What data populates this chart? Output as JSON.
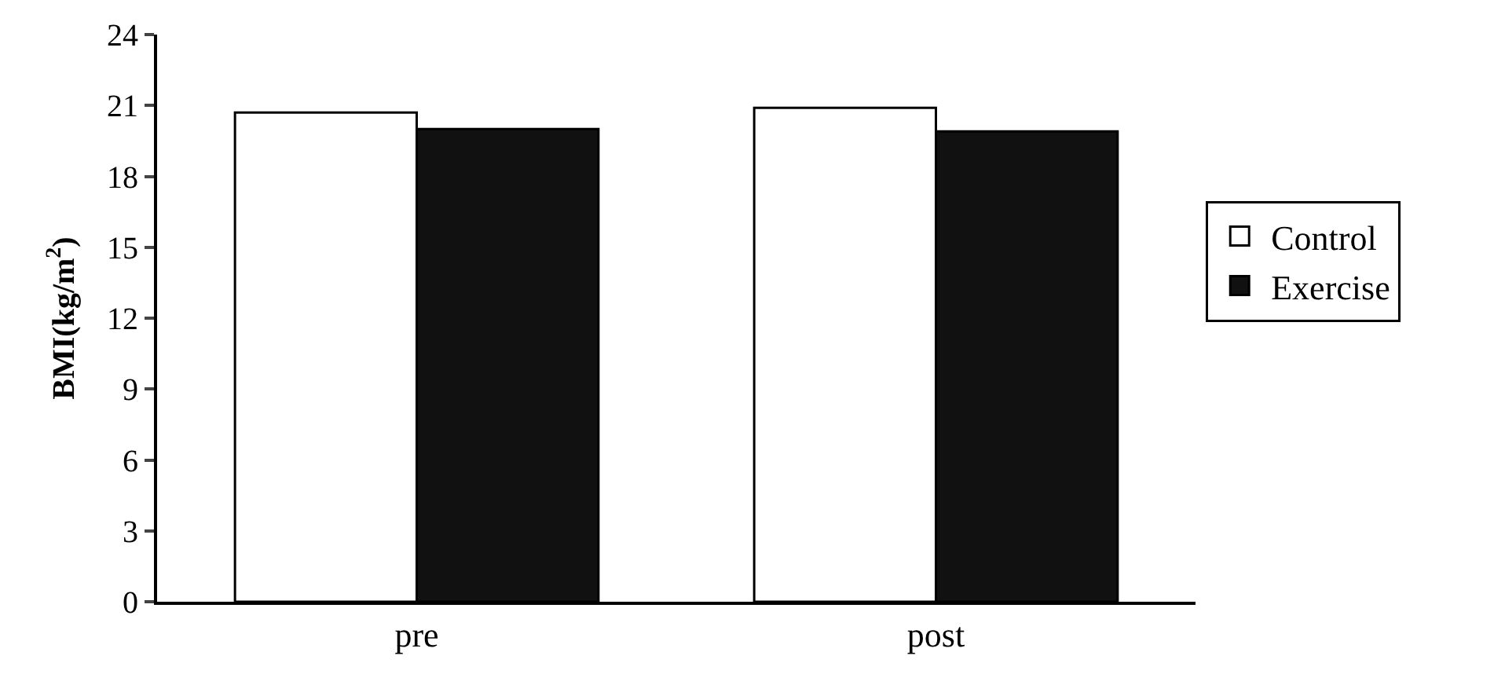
{
  "chart_data": {
    "type": "bar",
    "ylabel": "BMI(kg/m$^{2}$)",
    "categories": [
      "pre",
      "post"
    ],
    "series": [
      {
        "name": "Control",
        "color": "#ffffff",
        "values": [
          20.7,
          20.9
        ]
      },
      {
        "name": "Exercise",
        "color": "#111111",
        "values": [
          20.0,
          19.9
        ]
      }
    ],
    "ylim": [
      0,
      24
    ],
    "yticks": [
      0,
      3,
      6,
      9,
      12,
      15,
      18,
      21,
      24
    ],
    "grid": false,
    "legend": "right"
  }
}
